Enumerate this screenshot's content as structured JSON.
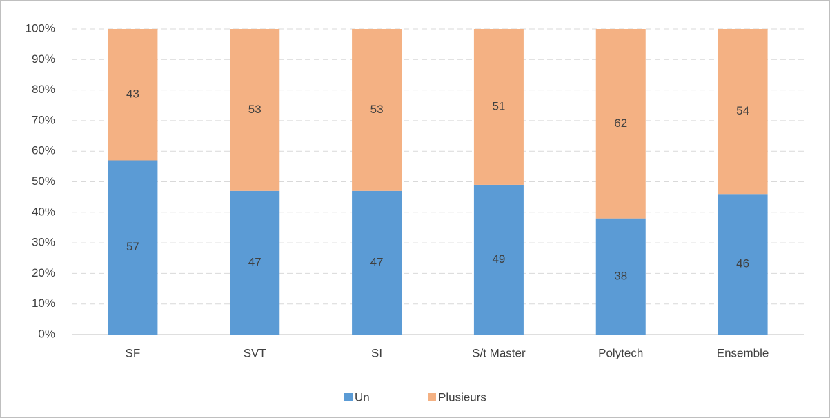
{
  "chart_data": {
    "type": "stacked_bar",
    "categories": [
      "SF",
      "SVT",
      "SI",
      "S/t Master",
      "Polytech",
      "Ensemble"
    ],
    "series": [
      {
        "name": "Un",
        "color": "#5b9bd5",
        "values": [
          57,
          47,
          47,
          49,
          38,
          46
        ]
      },
      {
        "name": "Plusieurs",
        "color": "#f4b183",
        "values": [
          43,
          53,
          53,
          51,
          62,
          54
        ]
      }
    ],
    "ylim": [
      0,
      100
    ],
    "yticks": [
      {
        "value": 0,
        "label": "0%"
      },
      {
        "value": 10,
        "label": "10%"
      },
      {
        "value": 20,
        "label": "20%"
      },
      {
        "value": 30,
        "label": "30%"
      },
      {
        "value": 40,
        "label": "40%"
      },
      {
        "value": 50,
        "label": "50%"
      },
      {
        "value": 60,
        "label": "60%"
      },
      {
        "value": 70,
        "label": "70%"
      },
      {
        "value": 80,
        "label": "80%"
      },
      {
        "value": 90,
        "label": "90%"
      },
      {
        "value": 100,
        "label": "100%"
      }
    ],
    "grid": true,
    "legend": "bottom"
  }
}
